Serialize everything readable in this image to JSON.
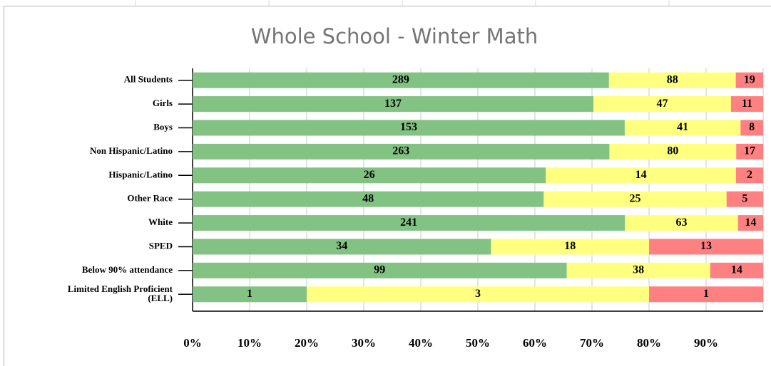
{
  "chart_data": {
    "type": "bar",
    "orientation": "horizontal",
    "stacking": "percent",
    "title": "Whole School - Winter Math",
    "categories": [
      "All Students",
      "Girls",
      "Boys",
      "Non Hispanic/Latino",
      "Hispanic/Latino",
      "Other Race",
      "White",
      "SPED",
      "Below 90% attendance",
      "Limited English Proficient\n(ELL)"
    ],
    "series": [
      {
        "color": "#82c282",
        "values": [
          289,
          137,
          153,
          263,
          26,
          48,
          241,
          34,
          99,
          1
        ]
      },
      {
        "color": "#ffff80",
        "values": [
          88,
          47,
          41,
          80,
          14,
          25,
          63,
          18,
          38,
          3
        ]
      },
      {
        "color": "#ff8080",
        "values": [
          19,
          11,
          8,
          17,
          2,
          5,
          14,
          13,
          14,
          1
        ]
      }
    ],
    "xlim": [
      0,
      100
    ],
    "xticks": [
      {
        "value": 0,
        "label": "0%"
      },
      {
        "value": 10,
        "label": "10%"
      },
      {
        "value": 20,
        "label": "20%"
      },
      {
        "value": 30,
        "label": "30%"
      },
      {
        "value": 40,
        "label": "40%"
      },
      {
        "value": 50,
        "label": "50%"
      },
      {
        "value": 60,
        "label": "60%"
      },
      {
        "value": 70,
        "label": "70%"
      },
      {
        "value": 80,
        "label": "80%"
      },
      {
        "value": 90,
        "label": "90%"
      }
    ],
    "grid": true
  }
}
